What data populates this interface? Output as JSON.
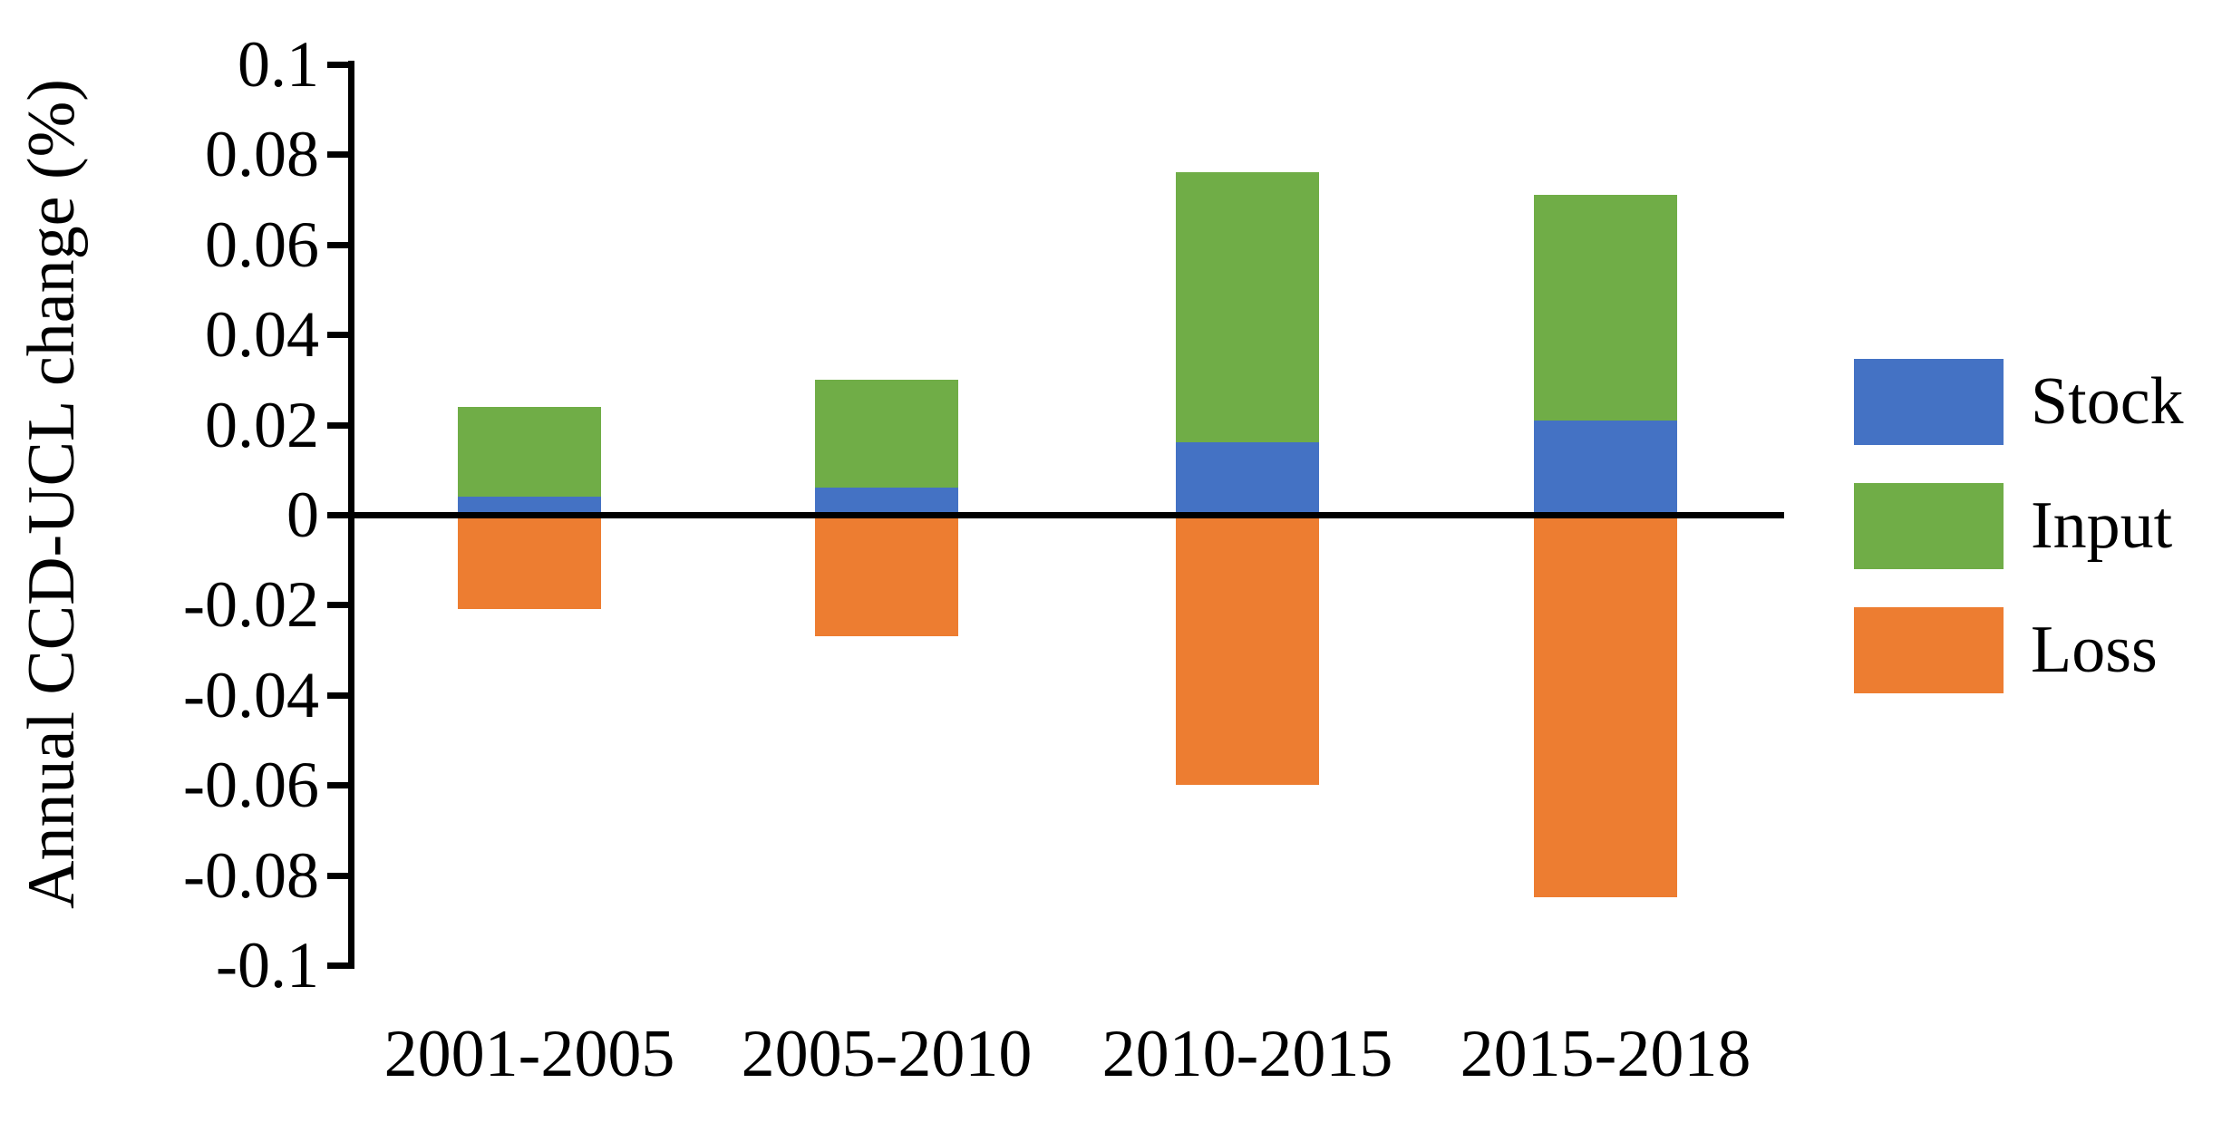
{
  "chart_data": {
    "type": "bar",
    "stacked": true,
    "categories": [
      "2001-2005",
      "2005-2010",
      "2010-2015",
      "2015-2018"
    ],
    "series": [
      {
        "name": "Stock",
        "color": "#4472C4",
        "values": [
          0.004,
          0.006,
          0.016,
          0.021
        ]
      },
      {
        "name": "Input",
        "color": "#70AD47",
        "values": [
          0.02,
          0.024,
          0.06,
          0.05
        ]
      },
      {
        "name": "Loss",
        "color": "#ED7D31",
        "values": [
          -0.021,
          -0.027,
          -0.06,
          -0.085
        ]
      }
    ],
    "ylabel": "Annual CCD-UCL change (%)",
    "ylim": [
      -0.1,
      0.1
    ],
    "y_ticks": [
      "0.1",
      "0.08",
      "0.06",
      "0.04",
      "0.02",
      "0",
      "-0.02",
      "-0.04",
      "-0.06",
      "-0.08",
      "-0.1"
    ],
    "legend_position": "right",
    "grid": false,
    "colors": {
      "axis": "#000000",
      "background": "#FFFFFF"
    }
  }
}
